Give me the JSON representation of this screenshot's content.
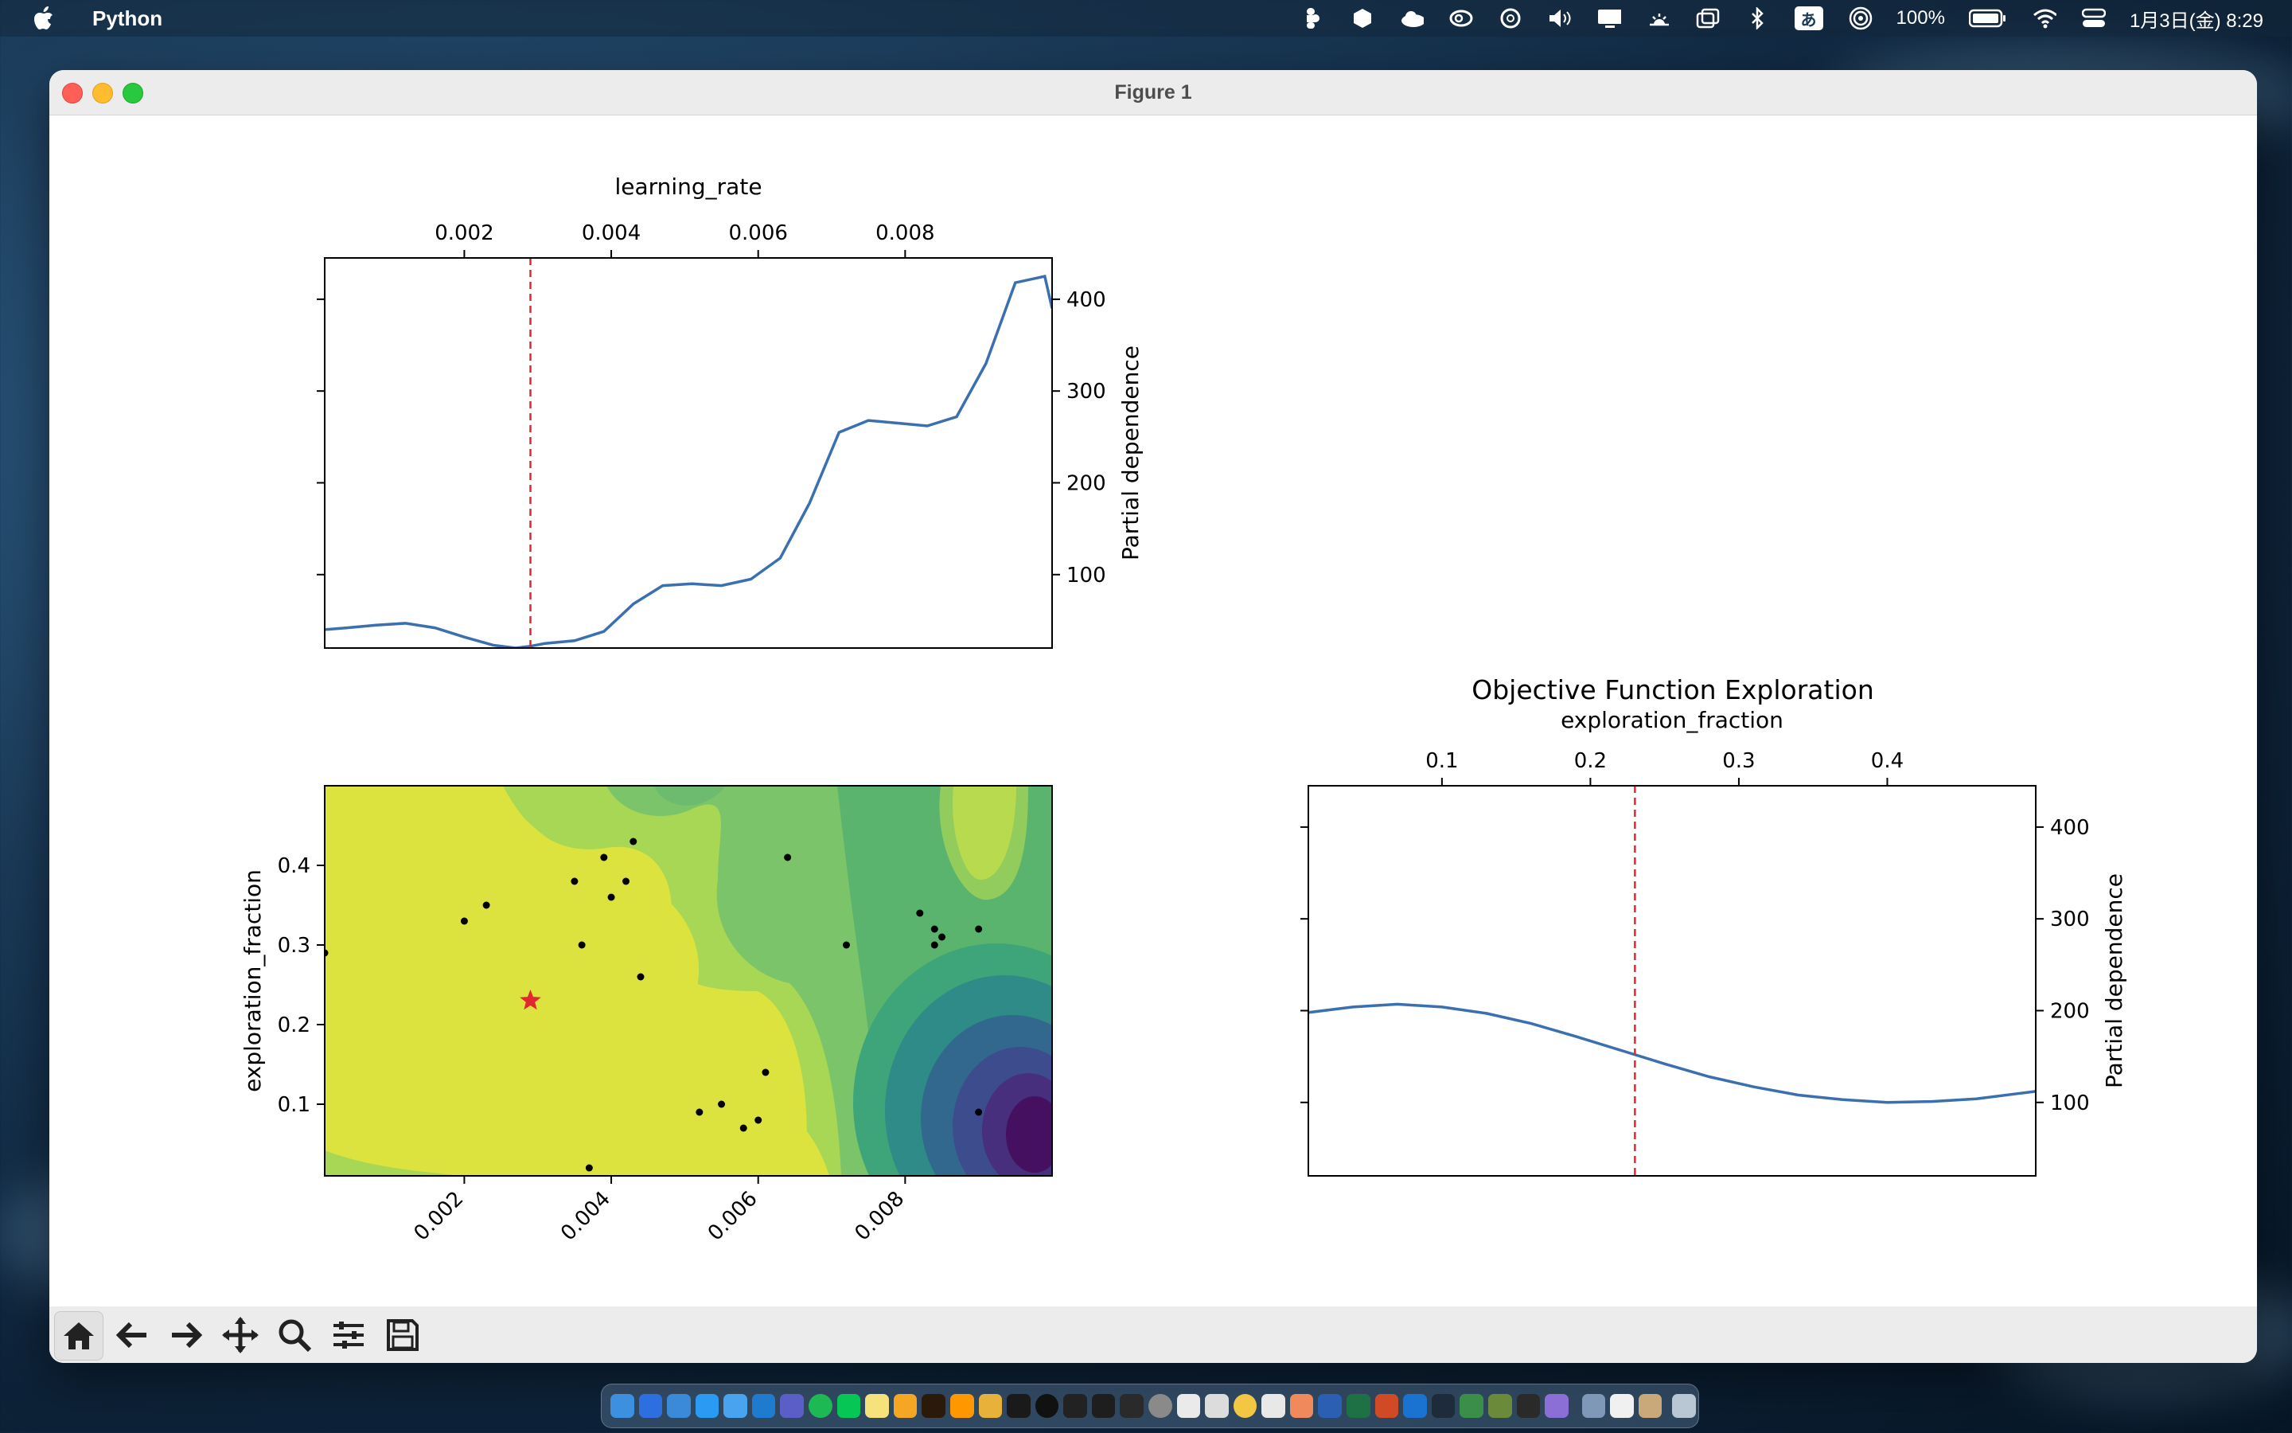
{
  "menubar": {
    "app_name": "Python",
    "battery": "100%",
    "datetime": "1月3日(金)  8:29",
    "ime": "あ",
    "icons": [
      "figma-icon",
      "dropbox-icon",
      "cloud-icon",
      "creative-cloud-icon",
      "chatgpt-icon",
      "volume-icon",
      "display-icon",
      "brightness-icon",
      "window-icon",
      "bluetooth-icon",
      "ime-icon",
      "airdrop-icon",
      "battery-icon",
      "wifi-icon",
      "control-center-icon"
    ]
  },
  "window": {
    "title": "Figure 1"
  },
  "figure": {
    "main_title": "Objective Function Exploration",
    "top_plot": {
      "xlabel": "learning_rate",
      "ylabel": "Partial dependence",
      "xticks": [
        "0.002",
        "0.004",
        "0.006",
        "0.008"
      ],
      "yticks": [
        "100",
        "200",
        "300",
        "400"
      ]
    },
    "contour_plot": {
      "xlabel": "learning_rate",
      "ylabel": "exploration_fraction",
      "xticks": [
        "0.002",
        "0.004",
        "0.006",
        "0.008"
      ],
      "yticks": [
        "0.1",
        "0.2",
        "0.3",
        "0.4"
      ]
    },
    "right_plot": {
      "xlabel": "exploration_fraction",
      "ylabel": "Partial dependence",
      "xticks": [
        "0.1",
        "0.2",
        "0.3",
        "0.4"
      ],
      "yticks": [
        "100",
        "200",
        "300",
        "400"
      ]
    }
  },
  "chart_data": [
    {
      "type": "line",
      "xlabel": "learning_rate",
      "ylabel": "Partial dependence",
      "xlim": [
        0.0001,
        0.01
      ],
      "ylim": [
        20,
        445
      ],
      "x": [
        0.0001,
        0.0004,
        0.0008,
        0.0012,
        0.0016,
        0.002,
        0.0024,
        0.0027,
        0.0029,
        0.0031,
        0.0035,
        0.0039,
        0.0043,
        0.0047,
        0.0051,
        0.0055,
        0.0059,
        0.0063,
        0.0067,
        0.0071,
        0.0075,
        0.0079,
        0.0083,
        0.0087,
        0.0091,
        0.0095,
        0.0099,
        0.01
      ],
      "y": [
        40,
        42,
        45,
        47,
        42,
        32,
        23,
        20,
        22,
        25,
        28,
        38,
        68,
        88,
        90,
        88,
        95,
        118,
        178,
        255,
        268,
        265,
        262,
        272,
        330,
        418,
        425,
        390
      ],
      "series": [
        {
          "name": "",
          "color": "#3a6fb0"
        }
      ],
      "vline": {
        "x": 0.0029,
        "color": "#e0282e",
        "style": "dashed"
      }
    },
    {
      "type": "heatmap",
      "xlabel": "learning_rate",
      "ylabel": "exploration_fraction",
      "xlim": [
        0.0001,
        0.01
      ],
      "ylim": [
        0.01,
        0.5
      ],
      "colormap": "viridis",
      "points": [
        [
          0.0001,
          0.29
        ],
        [
          0.002,
          0.33
        ],
        [
          0.0023,
          0.35
        ],
        [
          0.0035,
          0.38
        ],
        [
          0.0039,
          0.41
        ],
        [
          0.0043,
          0.43
        ],
        [
          0.0042,
          0.38
        ],
        [
          0.004,
          0.36
        ],
        [
          0.0036,
          0.3
        ],
        [
          0.0044,
          0.26
        ],
        [
          0.0064,
          0.41
        ],
        [
          0.0072,
          0.3
        ],
        [
          0.0082,
          0.34
        ],
        [
          0.0084,
          0.32
        ],
        [
          0.0085,
          0.31
        ],
        [
          0.0084,
          0.3
        ],
        [
          0.009,
          0.32
        ],
        [
          0.0052,
          0.09
        ],
        [
          0.0055,
          0.1
        ],
        [
          0.0058,
          0.07
        ],
        [
          0.006,
          0.08
        ],
        [
          0.0061,
          0.14
        ],
        [
          0.0037,
          0.02
        ],
        [
          0.009,
          0.09
        ]
      ],
      "best_point": {
        "x": 0.0029,
        "y": 0.23,
        "marker": "star",
        "color": "#e0282e"
      }
    },
    {
      "type": "line",
      "title": "Objective Function Exploration",
      "xlabel": "exploration_fraction",
      "ylabel": "Partial dependence",
      "xlim": [
        0.01,
        0.5
      ],
      "ylim": [
        20,
        445
      ],
      "x": [
        0.01,
        0.04,
        0.07,
        0.1,
        0.13,
        0.16,
        0.19,
        0.22,
        0.25,
        0.28,
        0.31,
        0.34,
        0.37,
        0.4,
        0.43,
        0.46,
        0.49,
        0.5
      ],
      "y": [
        198,
        204,
        207,
        204,
        197,
        186,
        172,
        157,
        142,
        128,
        117,
        108,
        103,
        100,
        101,
        104,
        110,
        112
      ],
      "series": [
        {
          "name": "",
          "color": "#3a6fb0"
        }
      ],
      "vline": {
        "x": 0.23,
        "color": "#e0282e",
        "style": "dashed"
      }
    }
  ],
  "toolbar": {
    "buttons": [
      "home-icon",
      "back-arrow-icon",
      "forward-arrow-icon",
      "pan-icon",
      "zoom-icon",
      "configure-subplots-icon",
      "save-icon"
    ]
  }
}
